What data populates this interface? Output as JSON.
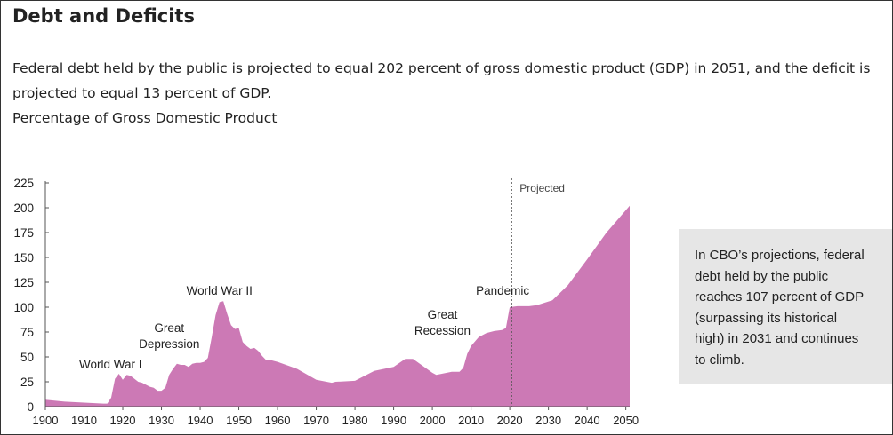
{
  "page": {
    "title": "Debt and Deficits",
    "description_lines": [
      "Federal debt held by the public is projected to equal 202 percent of gross domestic product (GDP) in 2051, and the deficit is",
      "projected to equal 13 percent of GDP."
    ],
    "unit_label": "Percentage of Gross Domestic Product"
  },
  "callout": {
    "lines": [
      "In CBO’s projections, federal",
      "debt held by the public",
      "reaches 107 percent of GDP",
      "(surpassing its historical",
      "high) in 2031 and continues",
      "to climb."
    ]
  },
  "colors": {
    "area_fill": "#cc79b5",
    "axis": "#555555",
    "text": "#222222",
    "projected_line": "#555555",
    "callout_bg": "#e6e6e6"
  },
  "chart_data": {
    "type": "area",
    "title": "",
    "xlabel": "",
    "ylabel": "",
    "xlim": [
      1900,
      2051
    ],
    "ylim": [
      0,
      225
    ],
    "grid": false,
    "x_ticks": [
      1900,
      1910,
      1920,
      1930,
      1940,
      1950,
      1960,
      1970,
      1980,
      1990,
      2000,
      2010,
      2020,
      2030,
      2040,
      2050
    ],
    "y_ticks": [
      0,
      25,
      50,
      75,
      100,
      125,
      150,
      175,
      200,
      225
    ],
    "projection_start": 2020.5,
    "projection_label": "Projected",
    "series": [
      {
        "x": [
          1900,
          1905,
          1910,
          1915,
          1916,
          1917,
          1918,
          1919,
          1920,
          1921,
          1922,
          1923,
          1924,
          1925,
          1926,
          1927,
          1928,
          1929,
          1930,
          1931,
          1932,
          1933,
          1934,
          1935,
          1936,
          1937,
          1938,
          1939,
          1940,
          1941,
          1942,
          1943,
          1944,
          1945,
          1946,
          1947,
          1948,
          1949,
          1950,
          1951,
          1952,
          1953,
          1954,
          1955,
          1956,
          1957,
          1958,
          1960,
          1965,
          1970,
          1974,
          1975,
          1980,
          1985,
          1990,
          1993,
          1995,
          2000,
          2001,
          2005,
          2007,
          2008,
          2009,
          2010,
          2012,
          2014,
          2016,
          2018,
          2019,
          2020,
          2022,
          2025,
          2027,
          2031,
          2035,
          2040,
          2045,
          2051
        ],
        "values": [
          7,
          5,
          4,
          3,
          3,
          9,
          28,
          33,
          27,
          32,
          31,
          28,
          25,
          24,
          22,
          20,
          19,
          16,
          16,
          19,
          32,
          38,
          43,
          42,
          42,
          40,
          43,
          44,
          44,
          45,
          49,
          70,
          92,
          105,
          106,
          93,
          82,
          78,
          79,
          65,
          61,
          58,
          59,
          56,
          51,
          47,
          47,
          45,
          38,
          27,
          24,
          25,
          26,
          36,
          40,
          48,
          48,
          34,
          32,
          35,
          35,
          39,
          53,
          61,
          70,
          74,
          76,
          77,
          79,
          100,
          101,
          101,
          102,
          107,
          122,
          148,
          175,
          202
        ]
      }
    ],
    "annotations": [
      {
        "lines": [
          "World War I"
        ],
        "x": 1918
      },
      {
        "lines": [
          "Great",
          "Depression"
        ],
        "x": 1932
      },
      {
        "lines": [
          "World War II"
        ],
        "x": 1945
      },
      {
        "lines": [
          "Great",
          "Recession"
        ],
        "x": 2001
      },
      {
        "lines": [
          "Pandemic"
        ],
        "x": 2020
      }
    ]
  }
}
